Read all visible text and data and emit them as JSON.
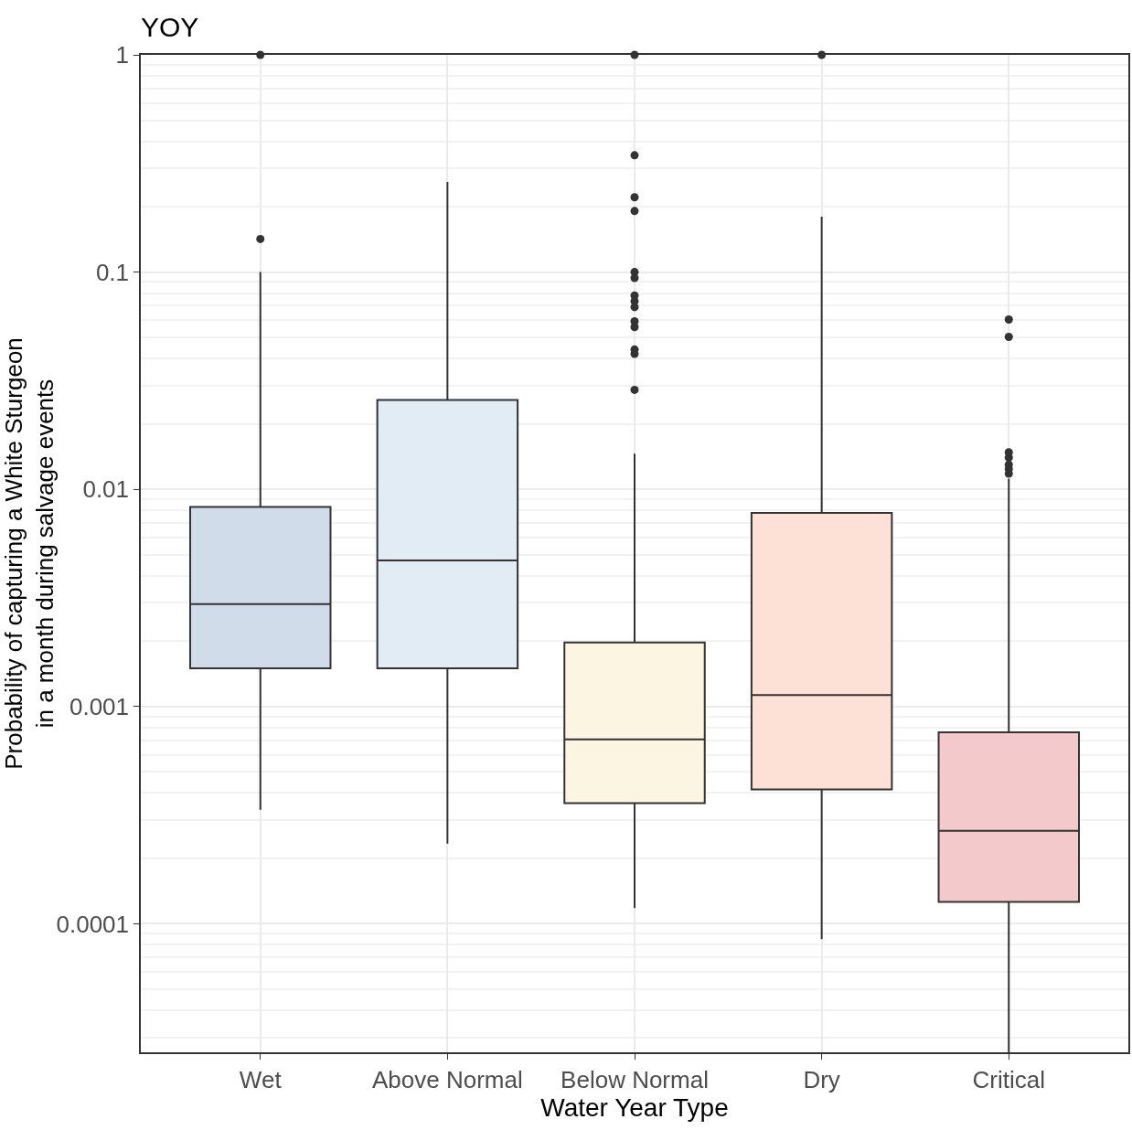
{
  "chart_data": {
    "type": "box",
    "title": "YOY",
    "xlabel": "Water Year Type",
    "ylabel": "Probability of capturing a White Sturgeon\nin a month during salvage events",
    "categories": [
      "Wet",
      "Above Normal",
      "Below Normal",
      "Dry",
      "Critical"
    ],
    "colors": [
      "#d0dcea",
      "#e1ecf4",
      "#fcf5e2",
      "#fde0d6",
      "#f4c9cb"
    ],
    "boxes": [
      {
        "low": 0.000335,
        "q1": 0.0015,
        "median": 0.00296,
        "q3": 0.0083,
        "high": 0.1,
        "outliers": [
          0.142,
          1
        ]
      },
      {
        "low": 0.000234,
        "q1": 0.0015,
        "median": 0.0047,
        "q3": 0.0258,
        "high": 0.26
      },
      {
        "low": 0.000118,
        "q1": 0.000359,
        "median": 0.000706,
        "q3": 0.00197,
        "high": 0.0146,
        "outliers": [
          0.0287,
          0.042,
          0.044,
          0.0558,
          0.0593,
          0.069,
          0.0734,
          0.078,
          0.094,
          0.1,
          0.191,
          0.221,
          0.345,
          1
        ]
      },
      {
        "low": 8.5e-05,
        "q1": 0.000415,
        "median": 0.00113,
        "q3": 0.00778,
        "high": 0.18,
        "outliers": [
          1
        ]
      },
      {
        "low": 2.56e-05,
        "q1": 0.000126,
        "median": 0.000268,
        "q3": 0.00076,
        "high": 0.0112,
        "outliers": [
          0.0118,
          0.0124,
          0.013,
          0.014,
          0.0148,
          0.0503,
          0.0605
        ]
      }
    ],
    "log": "y",
    "ylim": [
      2.56e-05,
      1
    ],
    "yticks": [
      0.0001,
      0.001,
      0.01,
      0.1,
      1
    ],
    "grid": true
  }
}
